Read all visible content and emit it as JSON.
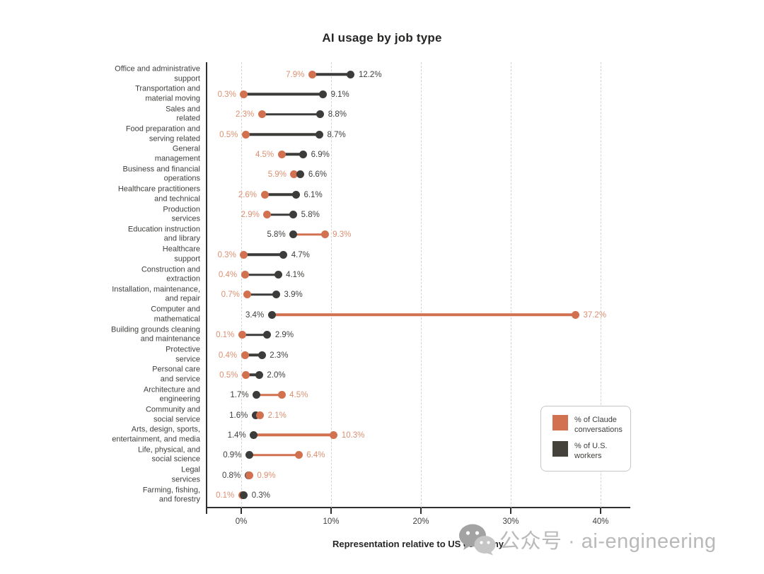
{
  "title": "AI usage by job type",
  "x_axis_label": "Representation relative to US economy",
  "watermark": {
    "icon": "wechat-icon",
    "text": "公众号 · ai-engineering"
  },
  "legend": {
    "items": [
      {
        "label": "% of Claude\nconversations",
        "series": "claude",
        "color": "#D2714F"
      },
      {
        "label": "% of U.S.\nworkers",
        "series": "workers",
        "color": "#45423C"
      }
    ]
  },
  "colors": {
    "claude_dot": "#D2714F",
    "claude_text": "#DB8F70",
    "workers_dot": "#3C3C3A",
    "workers_text": "#3F3F3D",
    "grid": "#D6D4D1",
    "axis": "#2F2F2D",
    "watermark": "#B9B9B9"
  },
  "chart_data": {
    "type": "dumbbell",
    "title": "AI usage by job type",
    "xlabel": "Representation relative to US economy",
    "grid": "vertical-dashed",
    "legend_position": "lower-right",
    "x_ticks": [
      0,
      10,
      20,
      30,
      40
    ],
    "x_tick_labels": [
      "0%",
      "10%",
      "20%",
      "30%",
      "40%"
    ],
    "xlim": [
      -3.9,
      43.3
    ],
    "categories": [
      "Office and administrative\nsupport",
      "Transportation and\nmaterial moving",
      "Sales and\nrelated",
      "Food preparation and\nserving related",
      "General\nmanagement",
      "Business and financial\noperations",
      "Healthcare practitioners\nand technical",
      "Production\nservices",
      "Education instruction\nand library",
      "Healthcare\nsupport",
      "Construction and\nextraction",
      "Installation, maintenance,\nand repair",
      "Computer and\nmathematical",
      "Building grounds cleaning\nand maintenance",
      "Protective\nservice",
      "Personal care\nand service",
      "Architecture and\nengineering",
      "Community and\nsocial service",
      "Arts, design, sports,\nentertainment, and media",
      "Life, physical, and\nsocial science",
      "Legal\nservices",
      "Farming, fishing,\nand forestry"
    ],
    "series": [
      {
        "name": "% of Claude conversations",
        "key": "claude",
        "values": [
          7.9,
          0.3,
          2.3,
          0.5,
          4.5,
          5.9,
          2.6,
          2.9,
          9.3,
          0.3,
          0.4,
          0.7,
          37.2,
          0.1,
          0.4,
          0.5,
          4.5,
          2.1,
          10.3,
          6.4,
          0.9,
          0.1
        ]
      },
      {
        "name": "% of U.S. workers",
        "key": "workers",
        "values": [
          12.2,
          9.1,
          8.8,
          8.7,
          6.9,
          6.6,
          6.1,
          5.8,
          5.8,
          4.7,
          4.1,
          3.9,
          3.4,
          2.9,
          2.3,
          2.0,
          1.7,
          1.6,
          1.4,
          0.9,
          0.8,
          0.3
        ]
      }
    ]
  }
}
